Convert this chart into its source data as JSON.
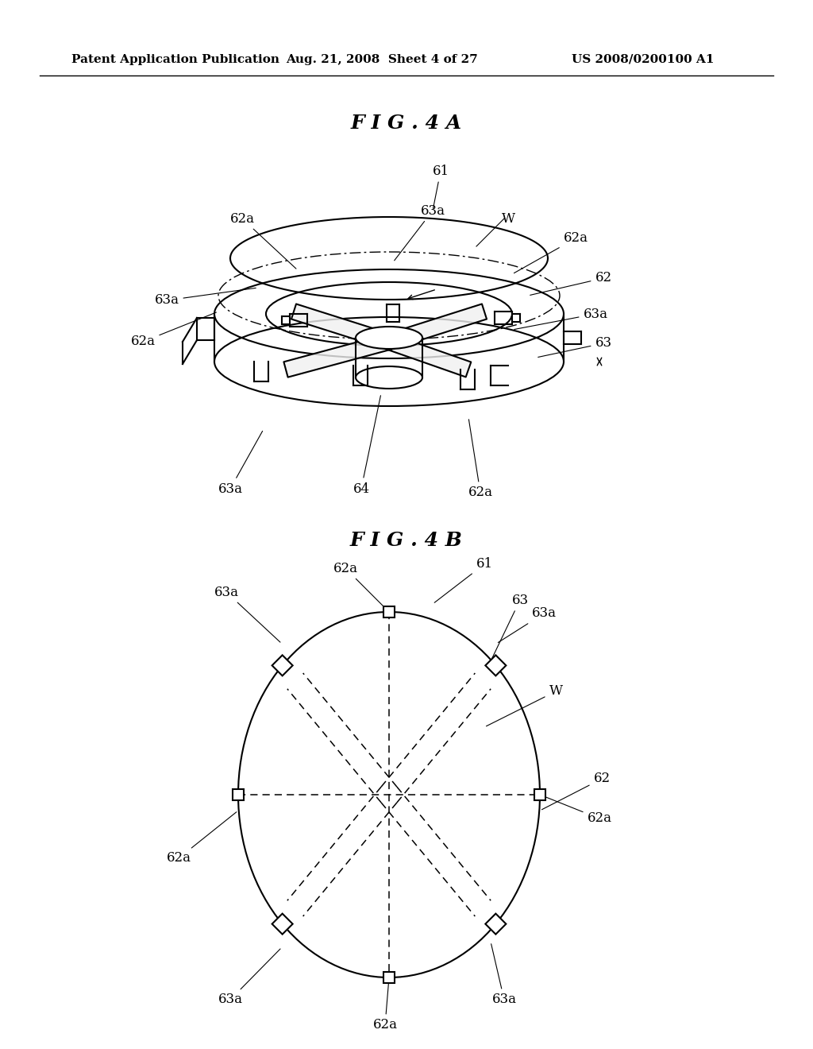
{
  "bg_color": "#ffffff",
  "line_color": "#000000",
  "header_left": "Patent Application Publication",
  "header_mid": "Aug. 21, 2008  Sheet 4 of 27",
  "header_right": "US 2008/0200100 A1",
  "fig4a_title": "F I G . 4 A",
  "fig4b_title": "F I G . 4 B",
  "fs_header": 11,
  "fs_label": 12,
  "fs_title": 18
}
